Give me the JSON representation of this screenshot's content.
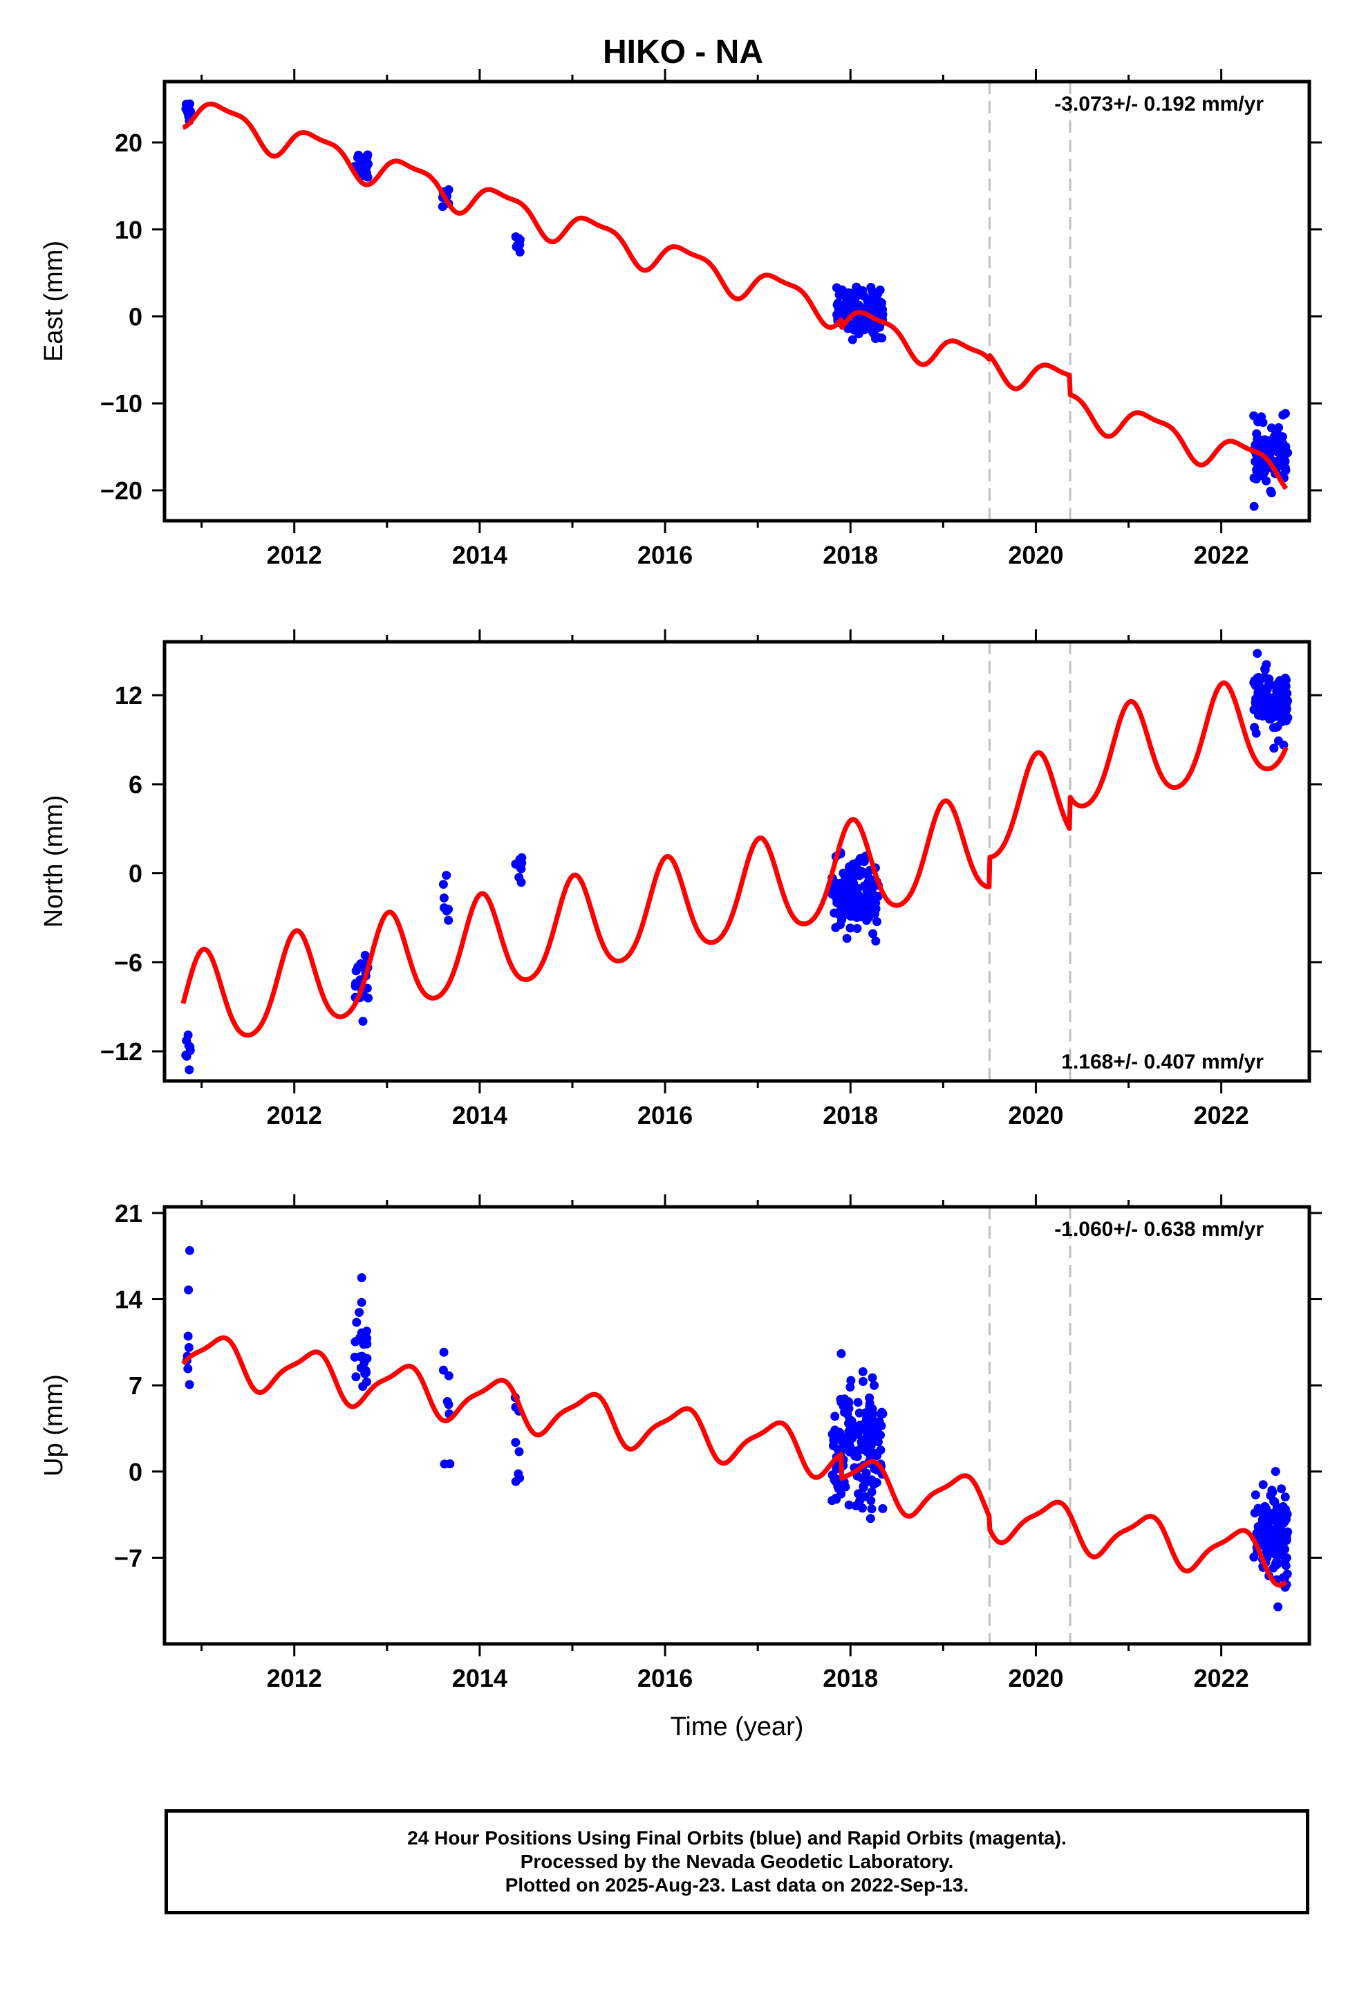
{
  "title": "HIKO - NA",
  "footer": {
    "line1": "24 Hour Positions Using Final Orbits (blue) and Rapid Orbits (magenta).",
    "line2": "Processed by the Nevada Geodetic Laboratory.",
    "line3": "Plotted on 2025-Aug-23. Last data on 2022-Sep-13."
  },
  "colors": {
    "final_orbit_points": "#0000ff",
    "model_curve": "#ff0000",
    "event_lines": "#c0c0c0",
    "frame": "#000000"
  },
  "chart_data": [
    {
      "type": "scatter",
      "component": "east",
      "ylabel": "East (mm)",
      "xlabel": "",
      "xlim": [
        2010.6,
        2022.95
      ],
      "ylim": [
        -23.5,
        27
      ],
      "xticks": [
        2012,
        2014,
        2016,
        2018,
        2020,
        2022
      ],
      "yticks": [
        -20,
        -10,
        0,
        10,
        20
      ],
      "rate_label": "-3.073+/- 0.192 mm/yr",
      "rate_position": "top-right",
      "event_lines": [
        2019.5,
        2020.37
      ],
      "model": {
        "start": 2010.8,
        "end": 2022.7,
        "v0": 24,
        "rate": -3.28,
        "a1": 1.8,
        "p1": 0.0,
        "a2": 0.6,
        "p2": 0.6,
        "steps": [
          {
            "t": 2017.9,
            "d": -1.0
          },
          {
            "t": 2019.5,
            "d": 0.5
          },
          {
            "t": 2020.37,
            "d": -2.2
          }
        ]
      },
      "point_clusters": [
        {
          "start": 2010.82,
          "end": 2010.88,
          "count": 8,
          "center": 24.0,
          "spread": 1.6
        },
        {
          "start": 2012.65,
          "end": 2012.8,
          "count": 26,
          "center": 17.5,
          "spread": 1.4
        },
        {
          "start": 2013.6,
          "end": 2013.68,
          "count": 8,
          "center": 14.0,
          "spread": 1.4
        },
        {
          "start": 2014.38,
          "end": 2014.46,
          "count": 8,
          "center": 8.5,
          "spread": 1.0
        },
        {
          "start": 2017.85,
          "end": 2018.35,
          "count": 140,
          "center": 0.5,
          "spread": 2.2
        },
        {
          "start": 2022.35,
          "end": 2022.72,
          "count": 110,
          "center": -16.0,
          "spread": 2.8
        }
      ]
    },
    {
      "type": "scatter",
      "component": "north",
      "ylabel": "North (mm)",
      "xlabel": "",
      "xlim": [
        2010.6,
        2022.95
      ],
      "ylim": [
        -14,
        15.6
      ],
      "xticks": [
        2012,
        2014,
        2016,
        2018,
        2020,
        2022
      ],
      "yticks": [
        -12,
        -6,
        0,
        6,
        12
      ],
      "rate_label": "1.168+/- 0.407 mm/yr",
      "rate_position": "bottom-right",
      "event_lines": [
        2019.5,
        2020.37
      ],
      "model": {
        "start": 2010.8,
        "end": 2022.7,
        "v0": -9.0,
        "rate": 1.25,
        "a1": 3.2,
        "p1": 0.23,
        "a2": 0.4,
        "p2": 0.1,
        "steps": [
          {
            "t": 2019.5,
            "d": 2.0
          },
          {
            "t": 2020.37,
            "d": 2.2
          }
        ]
      },
      "point_clusters": [
        {
          "start": 2010.82,
          "end": 2010.88,
          "count": 8,
          "center": -11.8,
          "spread": 1.0
        },
        {
          "start": 2012.65,
          "end": 2012.8,
          "count": 24,
          "center": -7.2,
          "spread": 1.6
        },
        {
          "start": 2013.6,
          "end": 2013.68,
          "count": 8,
          "center": -2.0,
          "spread": 1.8
        },
        {
          "start": 2014.38,
          "end": 2014.46,
          "count": 8,
          "center": 0.0,
          "spread": 1.2
        },
        {
          "start": 2017.8,
          "end": 2018.3,
          "count": 140,
          "center": -1.5,
          "spread": 2.0
        },
        {
          "start": 2022.35,
          "end": 2022.72,
          "count": 110,
          "center": 11.5,
          "spread": 1.8
        }
      ]
    },
    {
      "type": "scatter",
      "component": "up",
      "ylabel": "Up (mm)",
      "xlabel": "Time (year)",
      "xlim": [
        2010.6,
        2022.95
      ],
      "ylim": [
        -14,
        21.5
      ],
      "xticks": [
        2012,
        2014,
        2016,
        2018,
        2020,
        2022
      ],
      "yticks": [
        -7,
        0,
        7,
        14,
        21
      ],
      "rate_label": "-1.060+/- 0.638 mm/yr",
      "rate_position": "top-right",
      "event_lines": [
        2019.5,
        2020.37
      ],
      "model": {
        "start": 2010.8,
        "end": 2022.7,
        "v0": 9.5,
        "rate": -1.15,
        "a1": 1.8,
        "p1": 0.08,
        "a2": 0.5,
        "p2": 0.3,
        "steps": [
          {
            "t": 2017.9,
            "d": -2.0
          },
          {
            "t": 2019.5,
            "d": -1.0
          }
        ]
      },
      "point_clusters": [
        {
          "start": 2010.82,
          "end": 2010.88,
          "count": 8,
          "center": 10.0,
          "spread": 5.5
        },
        {
          "start": 2012.65,
          "end": 2012.8,
          "count": 26,
          "center": 10.5,
          "spread": 3.5
        },
        {
          "start": 2013.6,
          "end": 2013.68,
          "count": 8,
          "center": 5.5,
          "spread": 5.5
        },
        {
          "start": 2014.38,
          "end": 2014.46,
          "count": 8,
          "center": 0.5,
          "spread": 5.5
        },
        {
          "start": 2017.8,
          "end": 2018.35,
          "count": 170,
          "center": 2.0,
          "spread": 4.0
        },
        {
          "start": 2022.35,
          "end": 2022.72,
          "count": 130,
          "center": -5.0,
          "spread": 3.5
        }
      ]
    }
  ]
}
